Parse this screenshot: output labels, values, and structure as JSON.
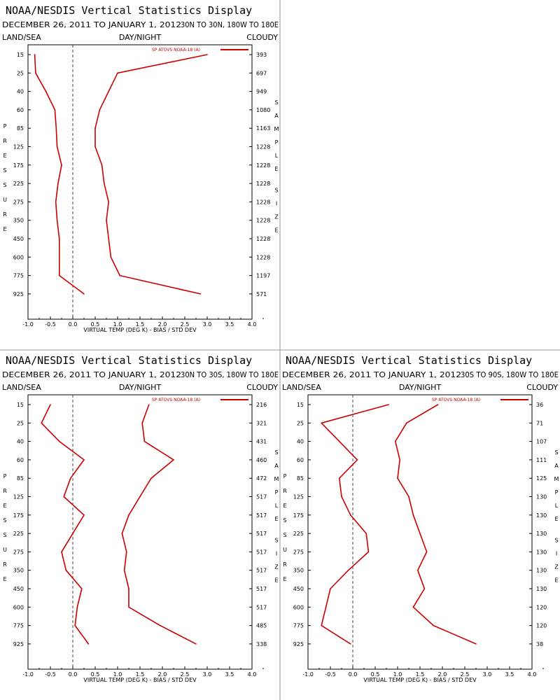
{
  "line_color": "#cc0000",
  "chart_data": [
    {
      "type": "line",
      "title": "NOAA/NESDIS Vertical Statistics Display",
      "date_range": "DECEMBER 26, 2011 TO JANUARY 1, 2012",
      "region": "30N TO 30N, 180W TO 180E",
      "header_left": "LAND/SEA",
      "header_center": "DAY/NIGHT",
      "header_right": "CLOUDY",
      "xlabel": "VIRTUAL TEMP (DEG K) - BIAS / STD DEV",
      "ylabel": "PRESSURE",
      "y2label": "SAMPLE SIZE",
      "legend": "SP ATOVS NOAA-18 (A)",
      "x_ticks": [
        "-1.0",
        "-0.5",
        "0.0",
        "0.5",
        "1.0",
        "1.5",
        "2.0",
        "2.5",
        "3.0",
        "3.5",
        "4.0"
      ],
      "xlim": [
        -1.0,
        4.0
      ],
      "pressure_levels": [
        "15",
        "25",
        "40",
        "60",
        "85",
        "125",
        "175",
        "225",
        "275",
        "350",
        "450",
        "600",
        "775",
        "925"
      ],
      "sample_size": [
        "393",
        "697",
        "949",
        "1080",
        "1163",
        "1228",
        "1228",
        "1228",
        "1228",
        "1228",
        "1228",
        "1228",
        "1197",
        "571"
      ],
      "series": [
        {
          "name": "BIAS",
          "values": [
            -0.85,
            -0.83,
            -0.6,
            -0.4,
            -0.37,
            -0.35,
            -0.25,
            -0.33,
            -0.38,
            -0.35,
            -0.3,
            -0.3,
            -0.3,
            0.25
          ]
        },
        {
          "name": "STD DEV",
          "values": [
            3.0,
            1.0,
            0.8,
            0.6,
            0.5,
            0.5,
            0.65,
            0.7,
            0.8,
            0.75,
            0.8,
            0.85,
            1.05,
            2.85
          ]
        }
      ]
    },
    {
      "type": "line",
      "title": "NOAA/NESDIS Vertical Statistics Display",
      "date_range": "DECEMBER 26, 2011 TO JANUARY 1, 2012",
      "region": "30N TO 30S, 180W TO 180E",
      "header_left": "LAND/SEA",
      "header_center": "DAY/NIGHT",
      "header_right": "CLOUDY",
      "xlabel": "VIRTUAL TEMP (DEG K) - BIAS / STD DEV",
      "ylabel": "PRESSURE",
      "y2label": "SAMPLE SIZE",
      "legend": "SP ATOVS NOAA-18 (A)",
      "x_ticks": [
        "-1.0",
        "-0.5",
        "0.0",
        "0.5",
        "1.0",
        "1.5",
        "2.0",
        "2.5",
        "3.0",
        "3.5",
        "4.0"
      ],
      "xlim": [
        -1.0,
        4.0
      ],
      "pressure_levels": [
        "15",
        "25",
        "40",
        "60",
        "85",
        "125",
        "175",
        "225",
        "275",
        "350",
        "450",
        "600",
        "775",
        "925"
      ],
      "sample_size": [
        "216",
        "321",
        "431",
        "460",
        "472",
        "517",
        "517",
        "517",
        "517",
        "517",
        "517",
        "517",
        "485",
        "338"
      ],
      "series": [
        {
          "name": "BIAS",
          "values": [
            -0.5,
            -0.7,
            -0.3,
            0.25,
            -0.05,
            -0.2,
            0.25,
            0.0,
            -0.25,
            -0.15,
            0.2,
            0.1,
            0.05,
            0.35
          ]
        },
        {
          "name": "STD DEV",
          "values": [
            1.7,
            1.55,
            1.6,
            2.25,
            1.75,
            1.5,
            1.25,
            1.1,
            1.2,
            1.15,
            1.25,
            1.25,
            1.95,
            2.75
          ]
        }
      ]
    },
    {
      "type": "line",
      "title": "NOAA/NESDIS Vertical Statistics Display",
      "date_range": "DECEMBER 26, 2011 TO JANUARY 1, 2012",
      "region": "30S TO 90S, 180W TO 180E",
      "header_left": "LAND/SEA",
      "header_center": "DAY/NIGHT",
      "header_right": "CLOUDY",
      "xlabel": "VIRTUAL TEMP (DEG K) - BIAS / STD DEV",
      "ylabel": "PRESSURE",
      "y2label": "SAMPLE SIZE",
      "legend": "SP ATOVS NOAA-18 (A)",
      "x_ticks": [
        "-1.0",
        "-0.5",
        "0.0",
        "0.5",
        "1.0",
        "1.5",
        "2.0",
        "2.5",
        "3.0",
        "3.5",
        "4.0"
      ],
      "xlim": [
        -1.0,
        4.0
      ],
      "pressure_levels": [
        "15",
        "25",
        "40",
        "60",
        "85",
        "125",
        "175",
        "225",
        "275",
        "350",
        "450",
        "600",
        "775",
        "925"
      ],
      "sample_size": [
        "36",
        "71",
        "107",
        "111",
        "125",
        "130",
        "130",
        "130",
        "130",
        "130",
        "130",
        "120",
        "120",
        "38"
      ],
      "series": [
        {
          "name": "BIAS",
          "values": [
            0.8,
            -0.7,
            -0.3,
            0.1,
            -0.3,
            -0.25,
            -0.05,
            0.3,
            0.35,
            -0.1,
            -0.5,
            -0.6,
            -0.7,
            -0.05
          ]
        },
        {
          "name": "STD DEV",
          "values": [
            1.9,
            1.2,
            0.95,
            1.05,
            1.0,
            1.25,
            1.35,
            1.5,
            1.65,
            1.45,
            1.6,
            1.35,
            1.8,
            2.75
          ]
        }
      ]
    }
  ]
}
